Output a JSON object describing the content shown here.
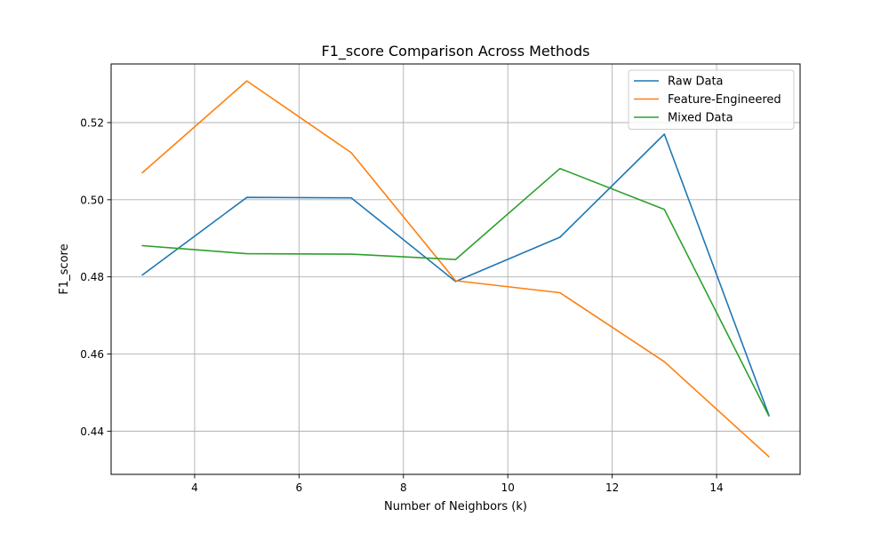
{
  "chart_data": {
    "type": "line",
    "title": "F1_score Comparison Across Methods",
    "xlabel": "Number of Neighbors (k)",
    "ylabel": "F1_score",
    "x": [
      3,
      5,
      7,
      9,
      11,
      13,
      15
    ],
    "xlim": [
      2.4,
      15.6
    ],
    "ylim": [
      0.4288,
      0.5352
    ],
    "xticks": [
      4,
      6,
      8,
      10,
      12,
      14
    ],
    "yticks": [
      0.44,
      0.46,
      0.48,
      0.5,
      0.52
    ],
    "xtick_labels": [
      "4",
      "6",
      "8",
      "10",
      "12",
      "14"
    ],
    "ytick_labels": [
      "0.44",
      "0.46",
      "0.48",
      "0.50",
      "0.52"
    ],
    "grid": true,
    "legend_position": "top-right",
    "series": [
      {
        "name": "Raw Data",
        "color": "#1f77b4",
        "values": [
          0.4805,
          0.5006,
          0.5005,
          0.4788,
          0.4903,
          0.517,
          0.4442
        ]
      },
      {
        "name": "Feature-Engineered",
        "color": "#ff7f0e",
        "values": [
          0.507,
          0.5308,
          0.5122,
          0.479,
          0.4759,
          0.458,
          0.4334
        ]
      },
      {
        "name": "Mixed Data",
        "color": "#2ca02c",
        "values": [
          0.4881,
          0.486,
          0.4859,
          0.4845,
          0.5081,
          0.4975,
          0.444
        ]
      }
    ]
  }
}
